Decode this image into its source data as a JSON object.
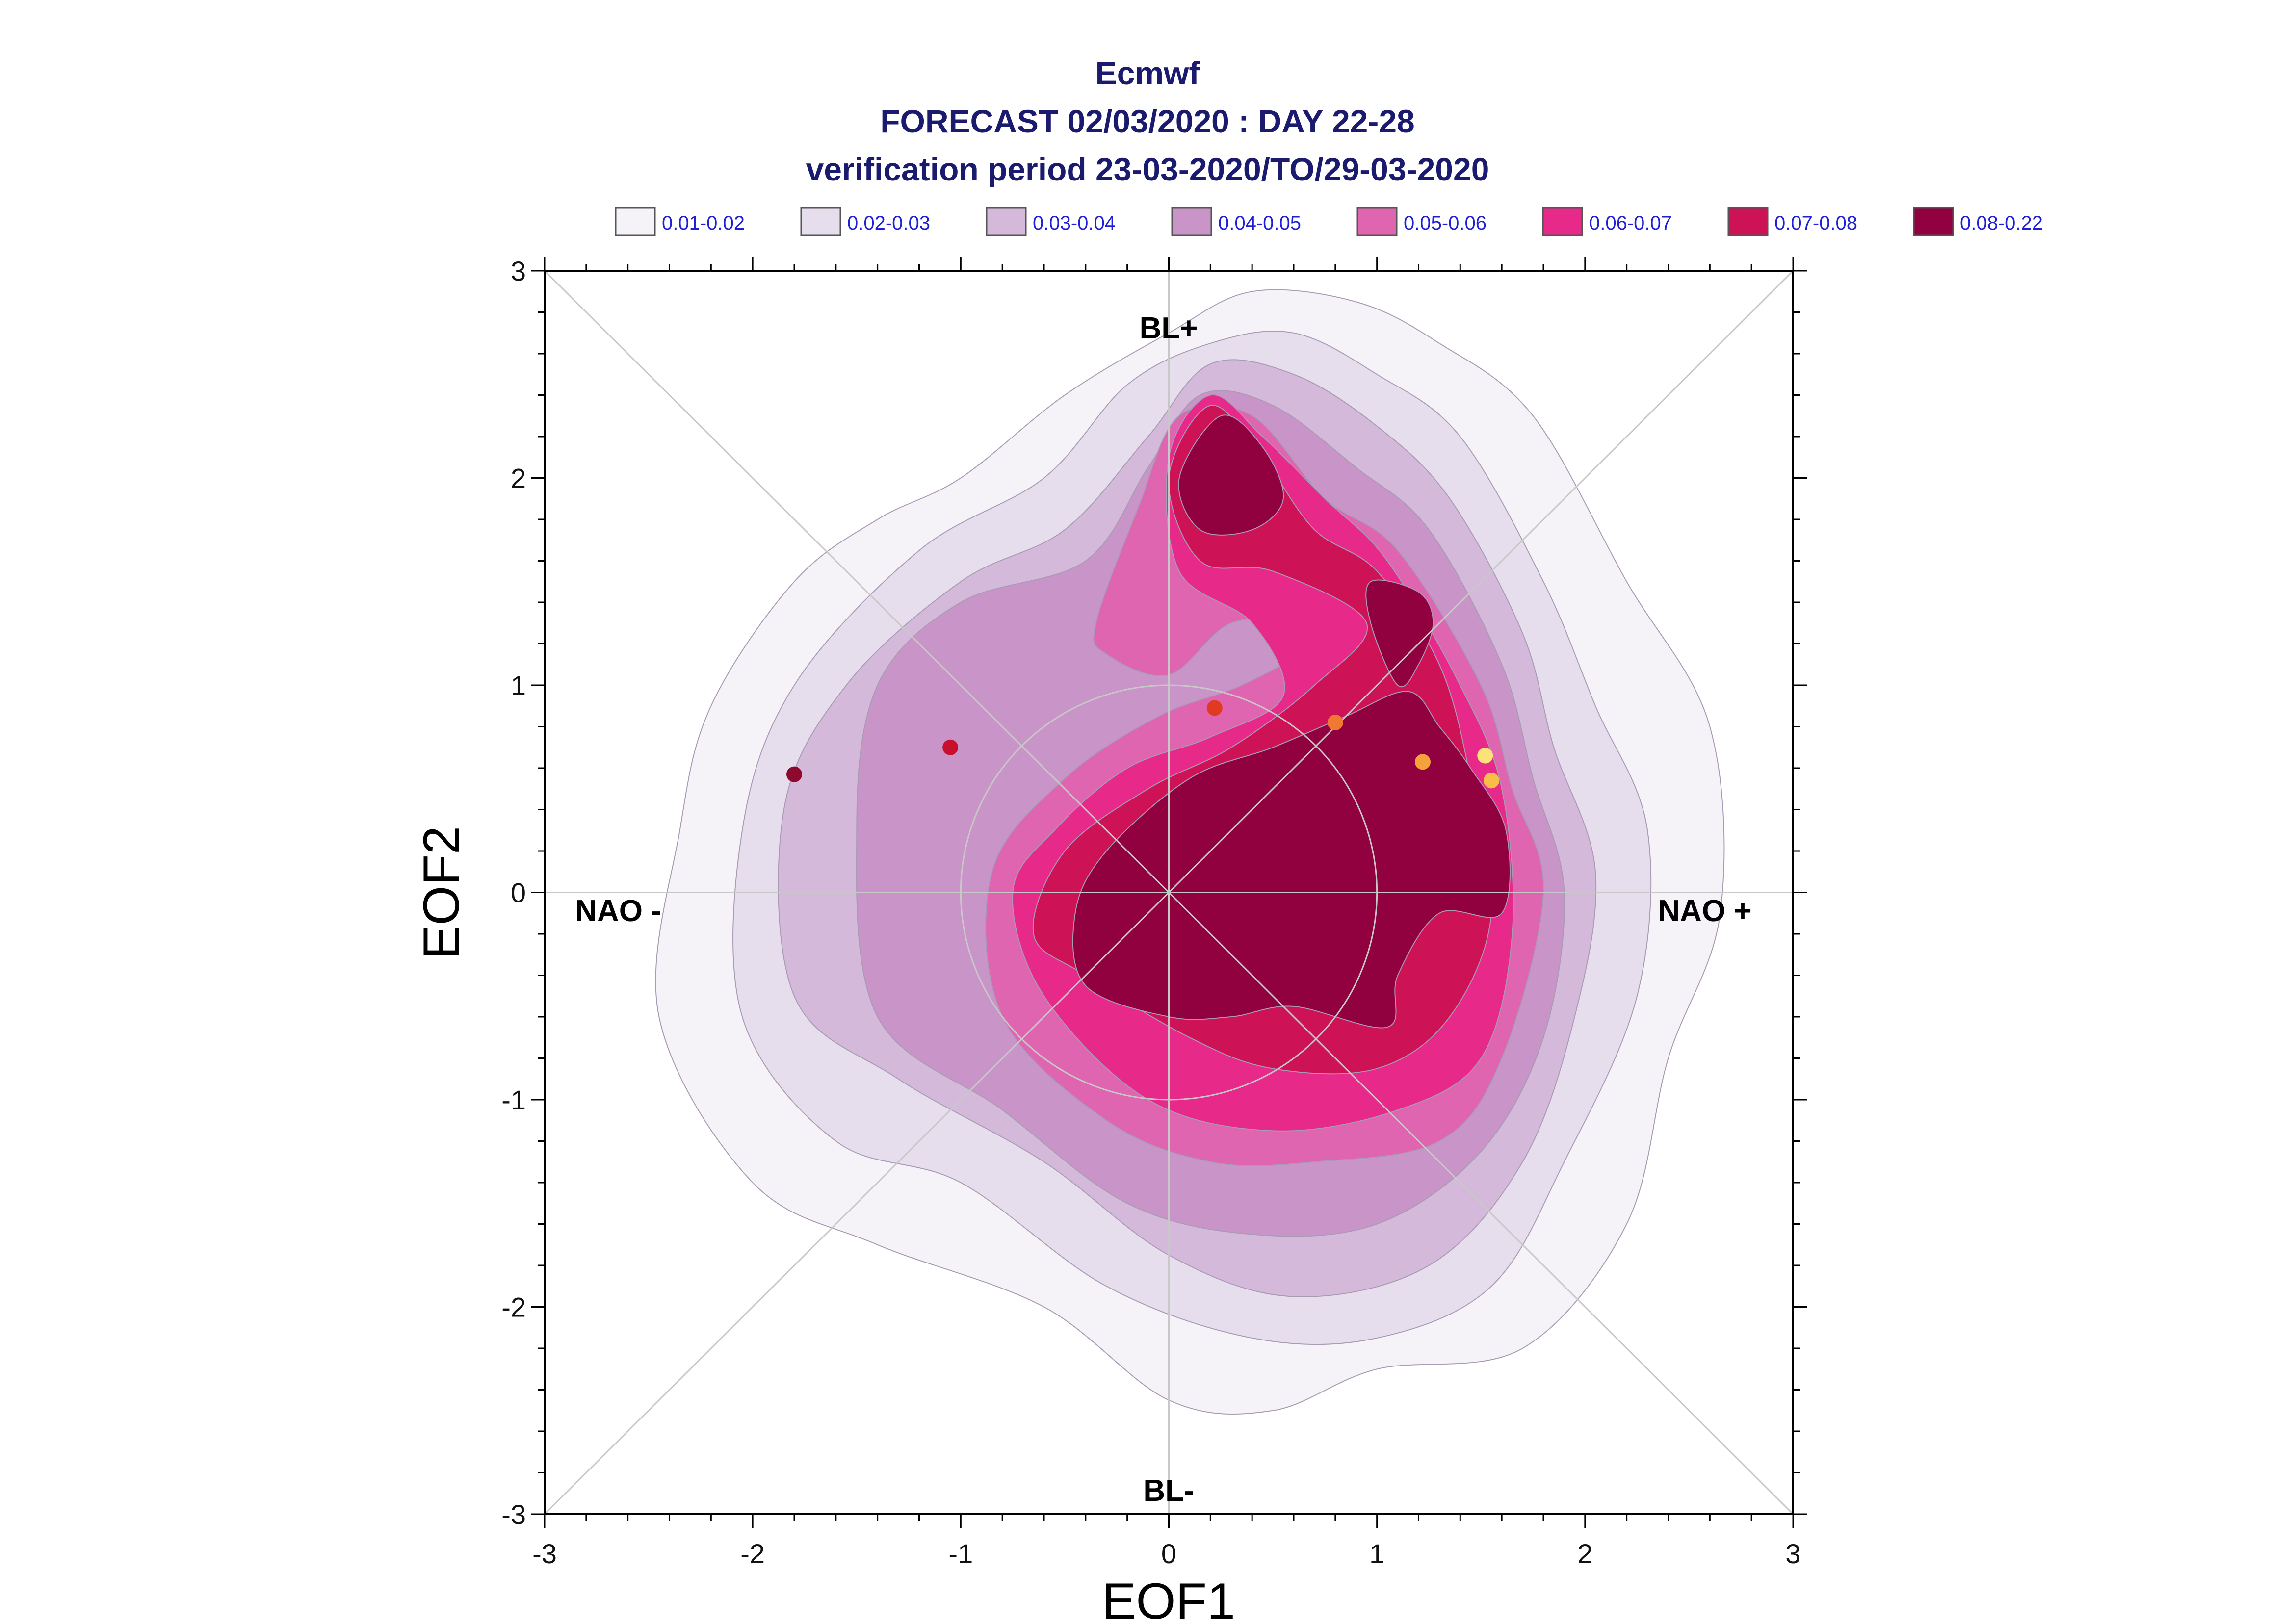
{
  "chart_data": {
    "type": "scatter",
    "title_lines": [
      "Ecmwf",
      "FORECAST 02/03/2020 : DAY 22-28",
      "verification period 23-03-2020/TO/29-03-2020"
    ],
    "xlabel": "EOF1",
    "ylabel": "EOF2",
    "xlim": [
      -3,
      3
    ],
    "ylim": [
      -3,
      3
    ],
    "x_ticks": [
      "-3",
      "-2",
      "-1",
      "0",
      "1",
      "2",
      "3"
    ],
    "y_ticks": [
      "-3",
      "-2",
      "-1",
      "0",
      "1",
      "2",
      "3"
    ],
    "grid": false,
    "regime_labels": {
      "top": "BL+",
      "bottom": "BL-",
      "left": "NAO -",
      "right": "NAO +"
    },
    "legend": {
      "placement": "top",
      "entries": [
        {
          "label": "0.01-0.02",
          "color": "#f6f3f8"
        },
        {
          "label": "0.02-0.03",
          "color": "#e6dded"
        },
        {
          "label": "0.03-0.04",
          "color": "#d4b9da"
        },
        {
          "label": "0.04-0.05",
          "color": "#c994c7"
        },
        {
          "label": "0.05-0.06",
          "color": "#df65b0"
        },
        {
          "label": "0.06-0.07",
          "color": "#e7298a"
        },
        {
          "label": "0.07-0.08",
          "color": "#ce1256"
        },
        {
          "label": "0.08-0.22",
          "color": "#91003f"
        }
      ]
    },
    "density_contours": [
      {
        "level": "0.01-0.02",
        "color": "#f6f3f8",
        "points": [
          [
            -1.0,
            2.0
          ],
          [
            -0.5,
            2.4
          ],
          [
            0.0,
            2.7
          ],
          [
            0.4,
            2.9
          ],
          [
            0.9,
            2.85
          ],
          [
            1.3,
            2.65
          ],
          [
            1.75,
            2.3
          ],
          [
            2.2,
            1.5
          ],
          [
            2.6,
            0.8
          ],
          [
            2.65,
            -0.1
          ],
          [
            2.4,
            -0.8
          ],
          [
            2.2,
            -1.6
          ],
          [
            1.7,
            -2.2
          ],
          [
            1.0,
            -2.3
          ],
          [
            0.5,
            -2.5
          ],
          [
            0.0,
            -2.45
          ],
          [
            -0.6,
            -2.0
          ],
          [
            -1.4,
            -1.7
          ],
          [
            -2.0,
            -1.4
          ],
          [
            -2.45,
            -0.6
          ],
          [
            -2.35,
            0.3
          ],
          [
            -2.2,
            0.9
          ],
          [
            -1.8,
            1.5
          ],
          [
            -1.4,
            1.8
          ]
        ]
      },
      {
        "level": "0.02-0.03",
        "color": "#e6dded",
        "points": [
          [
            -0.6,
            2.0
          ],
          [
            -0.2,
            2.45
          ],
          [
            0.2,
            2.65
          ],
          [
            0.6,
            2.7
          ],
          [
            1.0,
            2.5
          ],
          [
            1.4,
            2.2
          ],
          [
            1.8,
            1.5
          ],
          [
            2.05,
            0.9
          ],
          [
            2.3,
            0.3
          ],
          [
            2.25,
            -0.5
          ],
          [
            1.9,
            -1.3
          ],
          [
            1.55,
            -1.9
          ],
          [
            1.0,
            -2.15
          ],
          [
            0.4,
            -2.15
          ],
          [
            -0.3,
            -1.9
          ],
          [
            -1.0,
            -1.4
          ],
          [
            -1.6,
            -1.2
          ],
          [
            -2.05,
            -0.6
          ],
          [
            -2.05,
            0.3
          ],
          [
            -1.8,
            1.0
          ],
          [
            -1.2,
            1.65
          ]
        ]
      },
      {
        "level": "0.03-0.04",
        "color": "#d4b9da",
        "points": [
          [
            -0.5,
            1.75
          ],
          [
            -0.1,
            2.2
          ],
          [
            0.2,
            2.55
          ],
          [
            0.6,
            2.5
          ],
          [
            1.0,
            2.25
          ],
          [
            1.35,
            1.9
          ],
          [
            1.7,
            1.25
          ],
          [
            1.85,
            0.7
          ],
          [
            2.05,
            0.1
          ],
          [
            1.95,
            -0.6
          ],
          [
            1.7,
            -1.3
          ],
          [
            1.25,
            -1.8
          ],
          [
            0.6,
            -1.95
          ],
          [
            0.0,
            -1.75
          ],
          [
            -0.6,
            -1.3
          ],
          [
            -1.3,
            -0.9
          ],
          [
            -1.8,
            -0.5
          ],
          [
            -1.85,
            0.4
          ],
          [
            -1.55,
            1.0
          ],
          [
            -1.0,
            1.5
          ]
        ]
      },
      {
        "level": "0.04-0.05",
        "color": "#c994c7",
        "points": [
          [
            -0.4,
            1.6
          ],
          [
            -0.1,
            2.05
          ],
          [
            0.15,
            2.4
          ],
          [
            0.5,
            2.35
          ],
          [
            0.9,
            2.05
          ],
          [
            1.25,
            1.75
          ],
          [
            1.6,
            1.1
          ],
          [
            1.75,
            0.55
          ],
          [
            1.9,
            0.0
          ],
          [
            1.8,
            -0.7
          ],
          [
            1.5,
            -1.25
          ],
          [
            1.0,
            -1.6
          ],
          [
            0.4,
            -1.65
          ],
          [
            -0.2,
            -1.5
          ],
          [
            -0.8,
            -1.05
          ],
          [
            -1.4,
            -0.6
          ],
          [
            -1.5,
            0.3
          ],
          [
            -1.4,
            1.0
          ],
          [
            -1.0,
            1.4
          ]
        ]
      },
      {
        "level": "0.05-0.06",
        "color": "#df65b0",
        "points": [
          [
            -0.35,
            1.3
          ],
          [
            -0.15,
            1.85
          ],
          [
            0.05,
            2.3
          ],
          [
            0.4,
            2.3
          ],
          [
            0.75,
            1.9
          ],
          [
            1.1,
            1.65
          ],
          [
            1.5,
            1.0
          ],
          [
            1.65,
            0.5
          ],
          [
            1.8,
            0.0
          ],
          [
            1.6,
            -0.8
          ],
          [
            1.3,
            -1.2
          ],
          [
            0.7,
            -1.3
          ],
          [
            0.2,
            -1.3
          ],
          [
            -0.3,
            -1.1
          ],
          [
            -0.8,
            -0.6
          ],
          [
            -0.85,
            0.1
          ],
          [
            -0.5,
            0.55
          ],
          [
            -0.05,
            0.85
          ],
          [
            0.35,
            1.0
          ],
          [
            0.7,
            1.2
          ],
          [
            0.65,
            1.3
          ],
          [
            0.3,
            1.3
          ],
          [
            0.0,
            1.05
          ],
          [
            -0.3,
            1.15
          ]
        ]
      },
      {
        "level": "0.06-0.07",
        "color": "#e7298a",
        "points": [
          [
            0.0,
            2.1
          ],
          [
            0.2,
            2.4
          ],
          [
            0.45,
            2.2
          ],
          [
            0.75,
            1.9
          ],
          [
            1.05,
            1.6
          ],
          [
            1.4,
            1.0
          ],
          [
            1.6,
            0.5
          ],
          [
            1.65,
            -0.2
          ],
          [
            1.5,
            -0.8
          ],
          [
            1.1,
            -1.05
          ],
          [
            0.5,
            -1.15
          ],
          [
            -0.1,
            -1.0
          ],
          [
            -0.6,
            -0.5
          ],
          [
            -0.75,
            0.0
          ],
          [
            -0.55,
            0.3
          ],
          [
            -0.2,
            0.6
          ],
          [
            0.2,
            0.75
          ],
          [
            0.55,
            0.95
          ],
          [
            0.4,
            1.3
          ],
          [
            0.05,
            1.55
          ]
        ]
      },
      {
        "level": "0.07-0.08",
        "color": "#ce1256",
        "points": [
          [
            0.0,
            2.0
          ],
          [
            0.2,
            2.35
          ],
          [
            0.45,
            2.1
          ],
          [
            0.7,
            1.75
          ],
          [
            1.0,
            1.55
          ],
          [
            1.3,
            1.1
          ],
          [
            1.45,
            0.55
          ],
          [
            1.55,
            -0.1
          ],
          [
            1.35,
            -0.6
          ],
          [
            1.0,
            -0.85
          ],
          [
            0.5,
            -0.85
          ],
          [
            0.1,
            -0.7
          ],
          [
            -0.4,
            -0.4
          ],
          [
            -0.65,
            -0.2
          ],
          [
            -0.5,
            0.2
          ],
          [
            -0.1,
            0.5
          ],
          [
            0.3,
            0.7
          ],
          [
            0.7,
            1.0
          ],
          [
            0.95,
            1.3
          ],
          [
            0.5,
            1.55
          ],
          [
            0.15,
            1.6
          ]
        ]
      },
      {
        "level": "0.08-0.22",
        "color": "#91003f",
        "points": [
          [
            0.05,
            2.0
          ],
          [
            0.25,
            2.3
          ],
          [
            0.45,
            2.15
          ],
          [
            0.55,
            1.9
          ],
          [
            0.4,
            1.75
          ],
          [
            0.15,
            1.75
          ]
        ]
      },
      {
        "level": "0.08-0.22",
        "color": "#91003f",
        "points": [
          [
            0.97,
            1.5
          ],
          [
            1.2,
            1.45
          ],
          [
            1.27,
            1.3
          ],
          [
            1.2,
            1.1
          ],
          [
            1.1,
            1.0
          ],
          [
            0.97,
            1.3
          ]
        ]
      },
      {
        "level": "0.08-0.22",
        "color": "#91003f",
        "points": [
          [
            -0.3,
            0.2
          ],
          [
            0.1,
            0.55
          ],
          [
            0.5,
            0.7
          ],
          [
            0.85,
            0.85
          ],
          [
            1.15,
            0.97
          ],
          [
            1.3,
            0.8
          ],
          [
            1.45,
            0.6
          ],
          [
            1.62,
            0.3
          ],
          [
            1.6,
            -0.1
          ],
          [
            1.3,
            -0.1
          ],
          [
            1.1,
            -0.4
          ],
          [
            1.05,
            -0.65
          ],
          [
            0.6,
            -0.55
          ],
          [
            0.3,
            -0.6
          ],
          [
            0.0,
            -0.6
          ],
          [
            -0.4,
            -0.45
          ],
          [
            -0.45,
            -0.1
          ]
        ]
      }
    ],
    "points": [
      {
        "x": -1.8,
        "y": 0.57,
        "color": "#8b0a2e"
      },
      {
        "x": -1.05,
        "y": 0.7,
        "color": "#c8102e"
      },
      {
        "x": 0.22,
        "y": 0.89,
        "color": "#e03a22"
      },
      {
        "x": 0.8,
        "y": 0.82,
        "color": "#f07832"
      },
      {
        "x": 1.22,
        "y": 0.63,
        "color": "#f5a23c"
      },
      {
        "x": 1.52,
        "y": 0.66,
        "color": "#fde27a"
      },
      {
        "x": 1.55,
        "y": 0.54,
        "color": "#f8bf47"
      }
    ]
  }
}
